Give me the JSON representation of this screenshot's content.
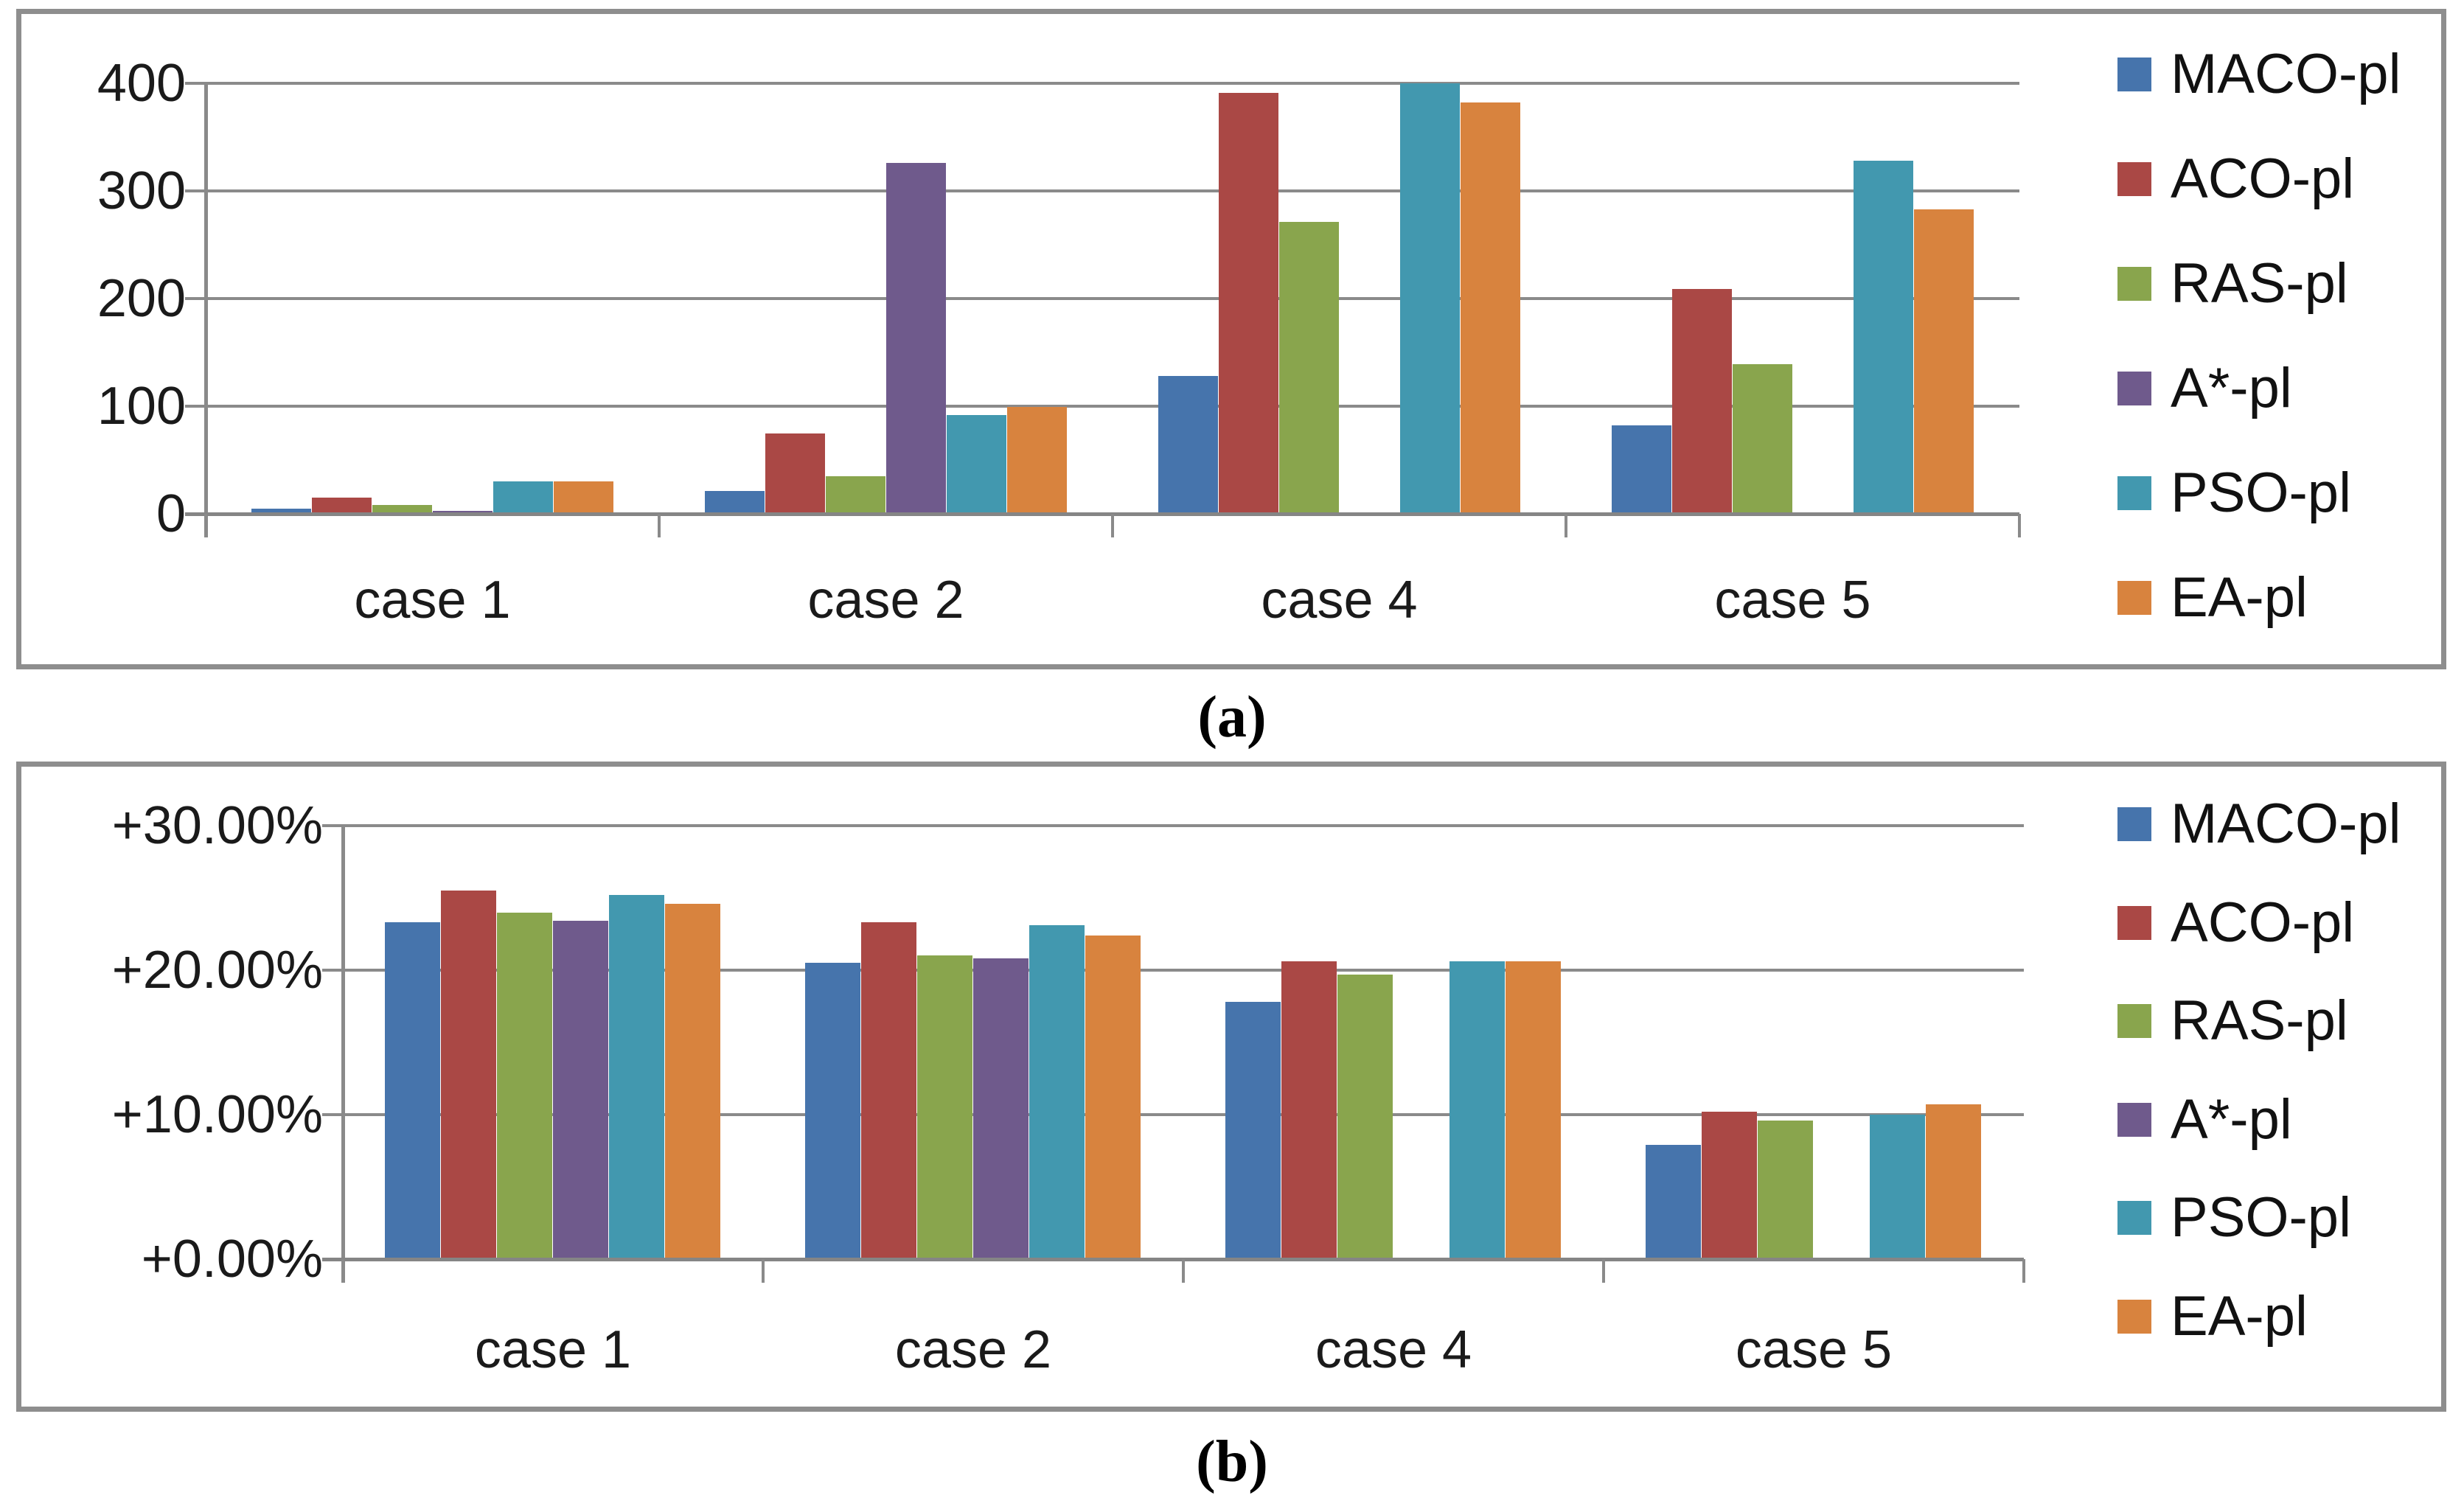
{
  "captions": {
    "a": "(a)",
    "b": "(b)"
  },
  "legend": [
    "MACO-pl",
    "ACO-pl",
    "RAS-pl",
    "A*-pl",
    "PSO-pl",
    "EA-pl"
  ],
  "colors": {
    "MACO-pl": "#4674AC",
    "ACO-pl": "#AA4845",
    "RAS-pl": "#89A54D",
    "A*-pl": "#6F5A8C",
    "PSO-pl": "#4298AF",
    "EA-pl": "#D8833E",
    "grid": "#8a8a8a",
    "border": "#8e8e8e"
  },
  "chart_data": [
    {
      "id": "a",
      "type": "bar",
      "title": "",
      "xlabel": "",
      "ylabel": "",
      "categories": [
        "case 1",
        "case 2",
        "case 4",
        "case 5"
      ],
      "series": [
        {
          "name": "MACO-pl",
          "values": [
            5,
            21,
            128,
            82
          ]
        },
        {
          "name": "ACO-pl",
          "values": [
            15,
            75,
            391,
            209
          ]
        },
        {
          "name": "RAS-pl",
          "values": [
            8,
            35,
            271,
            139
          ]
        },
        {
          "name": "A*-pl",
          "values": [
            3,
            326,
            0,
            0
          ]
        },
        {
          "name": "PSO-pl",
          "values": [
            30,
            92,
            400,
            328
          ]
        },
        {
          "name": "EA-pl",
          "values": [
            30,
            99,
            382,
            283
          ]
        }
      ],
      "ylim": [
        0,
        400
      ],
      "ytick_values": [
        0,
        100,
        200,
        300,
        400
      ],
      "ytick_labels": [
        "0",
        "100",
        "200",
        "300",
        "400"
      ],
      "grid": true,
      "legend_position": "right"
    },
    {
      "id": "b",
      "type": "bar",
      "title": "",
      "xlabel": "",
      "ylabel": "",
      "categories": [
        "case 1",
        "case 2",
        "case 4",
        "case 5"
      ],
      "series": [
        {
          "name": "MACO-pl",
          "values": [
            23.3,
            20.5,
            17.8,
            7.9
          ]
        },
        {
          "name": "ACO-pl",
          "values": [
            25.5,
            23.3,
            20.6,
            10.2
          ]
        },
        {
          "name": "RAS-pl",
          "values": [
            24.0,
            21.0,
            19.7,
            9.6
          ]
        },
        {
          "name": "A*-pl",
          "values": [
            23.4,
            20.8,
            0,
            0
          ]
        },
        {
          "name": "PSO-pl",
          "values": [
            25.2,
            23.1,
            20.6,
            10.0
          ]
        },
        {
          "name": "EA-pl",
          "values": [
            24.6,
            22.4,
            20.6,
            10.7
          ]
        }
      ],
      "ylim": [
        0,
        30
      ],
      "ytick_values": [
        0,
        10,
        20,
        30
      ],
      "ytick_labels": [
        "+0.00%",
        "+10.00%",
        "+20.00%",
        "+30.00%"
      ],
      "grid": true,
      "legend_position": "right"
    }
  ]
}
